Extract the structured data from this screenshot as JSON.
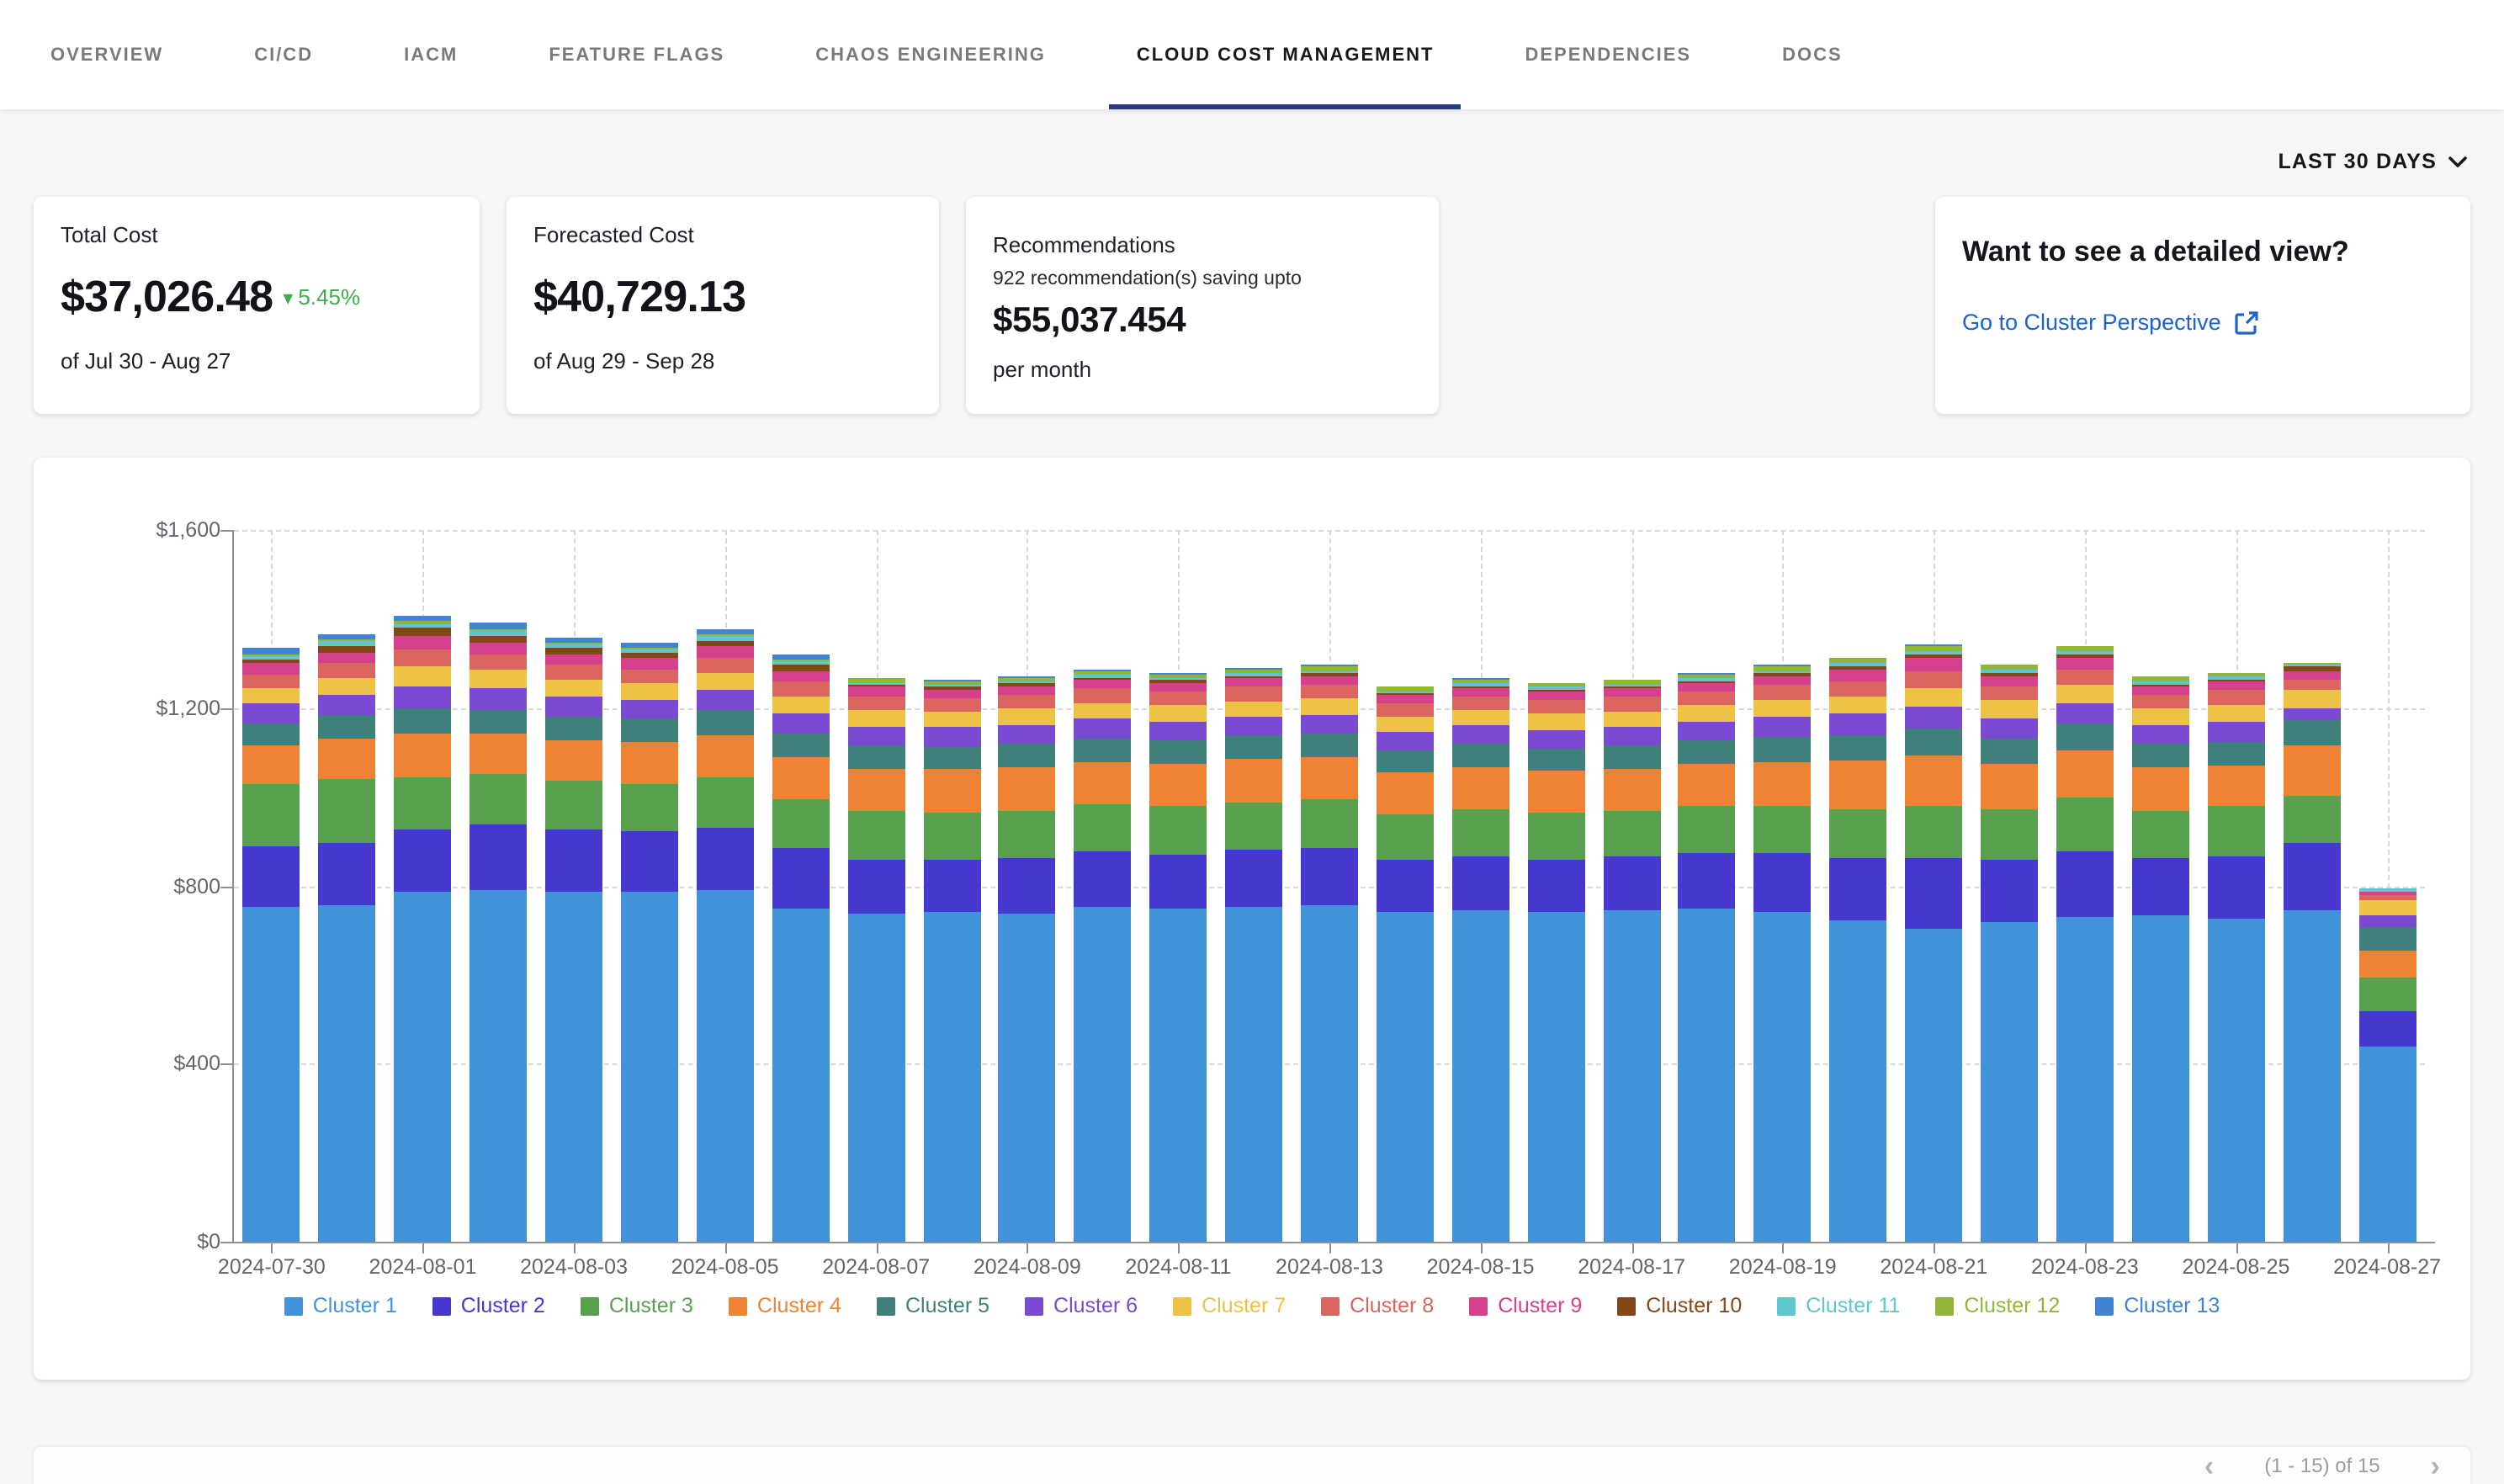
{
  "tabs": [
    {
      "label": "OVERVIEW",
      "active": false
    },
    {
      "label": "CI/CD",
      "active": false
    },
    {
      "label": "IACM",
      "active": false
    },
    {
      "label": "FEATURE FLAGS",
      "active": false
    },
    {
      "label": "CHAOS ENGINEERING",
      "active": false
    },
    {
      "label": "CLOUD COST MANAGEMENT",
      "active": true
    },
    {
      "label": "DEPENDENCIES",
      "active": false
    },
    {
      "label": "DOCS",
      "active": false
    }
  ],
  "range_selector": {
    "label": "LAST 30 DAYS"
  },
  "cards": {
    "total_cost": {
      "title": "Total Cost",
      "value": "$37,026.48",
      "delta": "5.45%",
      "delta_direction": "down",
      "period": "of Jul 30 - Aug 27"
    },
    "forecasted_cost": {
      "title": "Forecasted Cost",
      "value": "$40,729.13",
      "period": "of Aug 29 - Sep 28"
    },
    "recommendations": {
      "title": "Recommendations",
      "subtitle": "922 recommendation(s) saving upto",
      "value": "$55,037.454",
      "suffix": "per month"
    },
    "detail_view": {
      "title": "Want to see a detailed view?",
      "link_label": "Go to Cluster Perspective"
    }
  },
  "pagination": {
    "prev": "‹",
    "label": "(1 - 15) of 15",
    "next": "›"
  },
  "colors": {
    "accent_underline": "#273a87",
    "link": "#1d63c9",
    "green_delta": "#3fae49",
    "page_background": "#f6f6f7",
    "card_background": "#ffffff"
  },
  "chart_data": {
    "type": "bar",
    "stacked": true,
    "x": [
      "2024-07-30",
      "2024-07-31",
      "2024-08-01",
      "2024-08-02",
      "2024-08-03",
      "2024-08-04",
      "2024-08-05",
      "2024-08-06",
      "2024-08-07",
      "2024-08-08",
      "2024-08-09",
      "2024-08-10",
      "2024-08-11",
      "2024-08-12",
      "2024-08-13",
      "2024-08-14",
      "2024-08-15",
      "2024-08-16",
      "2024-08-17",
      "2024-08-18",
      "2024-08-19",
      "2024-08-20",
      "2024-08-21",
      "2024-08-22",
      "2024-08-23",
      "2024-08-24",
      "2024-08-25",
      "2024-08-26",
      "2024-08-27"
    ],
    "x_label_every": 2,
    "ylim": [
      0,
      1600
    ],
    "y_ticks": [
      0,
      400,
      800,
      1200,
      1600
    ],
    "y_tick_labels": [
      "$0",
      "$400",
      "$800",
      "$1,200",
      "$1,600"
    ],
    "grid": true,
    "legend_position": "bottom",
    "series": [
      {
        "name": "Cluster 1",
        "color": "#4192d8",
        "values": [
          752,
          758,
          788,
          792,
          788,
          786,
          792,
          750,
          736,
          740,
          738,
          752,
          748,
          754,
          758,
          740,
          744,
          740,
          744,
          748,
          742,
          722,
          705,
          718,
          730,
          734,
          728,
          744,
          437
        ]
      },
      {
        "name": "Cluster 2",
        "color": "#4438cf",
        "values": [
          138,
          140,
          140,
          145,
          138,
          136,
          140,
          134,
          124,
          120,
          124,
          124,
          122,
          126,
          128,
          118,
          122,
          120,
          122,
          124,
          130,
          142,
          158,
          142,
          148,
          128,
          138,
          151,
          80
        ]
      },
      {
        "name": "Cluster 3",
        "color": "#57a14e",
        "values": [
          139,
          142,
          118,
          116,
          110,
          108,
          112,
          110,
          108,
          106,
          108,
          108,
          108,
          108,
          108,
          104,
          106,
          104,
          104,
          106,
          108,
          110,
          118,
          112,
          120,
          108,
          112,
          109,
          76
        ]
      },
      {
        "name": "Cluster 4",
        "color": "#ee8334",
        "values": [
          86,
          92,
          96,
          90,
          92,
          92,
          96,
          96,
          94,
          96,
          96,
          96,
          96,
          96,
          95,
          92,
          94,
          94,
          94,
          96,
          100,
          108,
          112,
          104,
          108,
          96,
          92,
          111,
          62
        ]
      },
      {
        "name": "Cluster 5",
        "color": "#40807a",
        "values": [
          51,
          53,
          58,
          53,
          53,
          53,
          54,
          54,
          53,
          52,
          53,
          53,
          52,
          53,
          53,
          51,
          52,
          52,
          52,
          53,
          55,
          57,
          60,
          56,
          58,
          53,
          55,
          56,
          53
        ]
      },
      {
        "name": "Cluster 6",
        "color": "#7a4bd2",
        "values": [
          43,
          45,
          50,
          49,
          45,
          44,
          46,
          45,
          43,
          42,
          43,
          43,
          43,
          43,
          43,
          41,
          42,
          42,
          42,
          43,
          45,
          47,
          50,
          46,
          48,
          43,
          45,
          29,
          27
        ]
      },
      {
        "name": "Cluster 7",
        "color": "#eec243",
        "values": [
          35,
          37,
          44,
          40,
          38,
          37,
          39,
          38,
          36,
          35,
          36,
          36,
          36,
          36,
          36,
          34,
          35,
          35,
          35,
          36,
          38,
          40,
          43,
          39,
          41,
          36,
          38,
          42,
          33
        ]
      },
      {
        "name": "Cluster 8",
        "color": "#da655f",
        "values": [
          32,
          33,
          38,
          34,
          32,
          31,
          33,
          33,
          33,
          32,
          32,
          32,
          32,
          32,
          32,
          30,
          31,
          31,
          31,
          31,
          33,
          35,
          37,
          33,
          35,
          31,
          32,
          22,
          11
        ]
      },
      {
        "name": "Cluster 9",
        "color": "#d6418d",
        "values": [
          24,
          26,
          30,
          28,
          25,
          24,
          26,
          24,
          20,
          19,
          20,
          20,
          20,
          20,
          20,
          18,
          19,
          19,
          19,
          19,
          21,
          24,
          28,
          22,
          24,
          19,
          20,
          20,
          7
        ]
      },
      {
        "name": "Cluster 10",
        "color": "#854718",
        "values": [
          9,
          14,
          18,
          16,
          13,
          12,
          14,
          12,
          5,
          5,
          5,
          5,
          5,
          5,
          5,
          5,
          5,
          5,
          5,
          5,
          6,
          8,
          10,
          7,
          8,
          5,
          5,
          9,
          2
        ]
      },
      {
        "name": "Cluster 11",
        "color": "#5ec7ce",
        "values": [
          8,
          9,
          10,
          10,
          8,
          8,
          9,
          9,
          5,
          5,
          5,
          5,
          5,
          5,
          5,
          5,
          5,
          5,
          5,
          5,
          6,
          7,
          8,
          6,
          7,
          8,
          8,
          5,
          5
        ]
      },
      {
        "name": "Cluster 12",
        "color": "#90b737",
        "values": [
          4,
          5,
          6,
          6,
          5,
          5,
          5,
          5,
          9,
          9,
          9,
          9,
          9,
          9,
          10,
          9,
          9,
          9,
          9,
          10,
          11,
          11,
          11,
          11,
          11,
          9,
          5,
          2,
          0
        ]
      },
      {
        "name": "Cluster 13",
        "color": "#4183d4",
        "values": [
          14,
          11,
          12,
          12,
          12,
          11,
          12,
          10,
          3,
          3,
          3,
          3,
          3,
          3,
          3,
          2,
          2,
          2,
          2,
          2,
          2,
          2,
          2,
          2,
          2,
          2,
          2,
          0,
          0
        ]
      }
    ]
  }
}
